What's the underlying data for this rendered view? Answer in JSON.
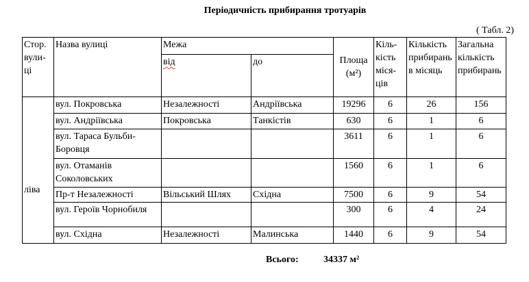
{
  "title": "Періодичність прибирання тротуарів",
  "table_ref": "( Табл. 2)",
  "headers": {
    "side": "Стор. вули-ці",
    "street": "Назва вулиці",
    "bounds": "Межа",
    "from": "від",
    "to": "до",
    "area": "Площа (м²)",
    "months": "Кіль-кість міся-ців",
    "per_month": "Кількість прибирань в місяць",
    "total": "Загальна кількість прибирань"
  },
  "side_value": "ліва",
  "rows": [
    {
      "street": "вул. Покровська",
      "from": "Незалежності",
      "to": "Андріївська",
      "area": "19296",
      "months": "6",
      "per_month": "26",
      "total": "156"
    },
    {
      "street": "вул. Андріївська",
      "from": "Покровська",
      "to": "Танкістів",
      "area": "630",
      "months": "6",
      "per_month": "1",
      "total": "6"
    },
    {
      "street": "вул. Тараса Бульби-Боровця",
      "from": "",
      "to": "",
      "area": "3611",
      "months": "6",
      "per_month": "1",
      "total": "6"
    },
    {
      "street": "вул.  Отаманів Соколовських",
      "from": "",
      "to": "",
      "area": "1560",
      "months": "6",
      "per_month": "1",
      "total": "6"
    },
    {
      "street": "Пр-т Незалежності",
      "from": "Вільський Шлях",
      "to": "Східна",
      "area": "7500",
      "months": "6",
      "per_month": "9",
      "total": "54"
    },
    {
      "street": "вул. Героїв Чорнобиля",
      "from": "",
      "to": "",
      "area": "300",
      "months": "6",
      "per_month": "4",
      "total": "24"
    },
    {
      "street": "вул. Східна",
      "from": "Незалежності",
      "to": "Малинська",
      "area": "1440",
      "months": "6",
      "per_month": "9",
      "total": "54"
    }
  ],
  "footer": {
    "label": "Всього:",
    "value": "34337 м²"
  }
}
